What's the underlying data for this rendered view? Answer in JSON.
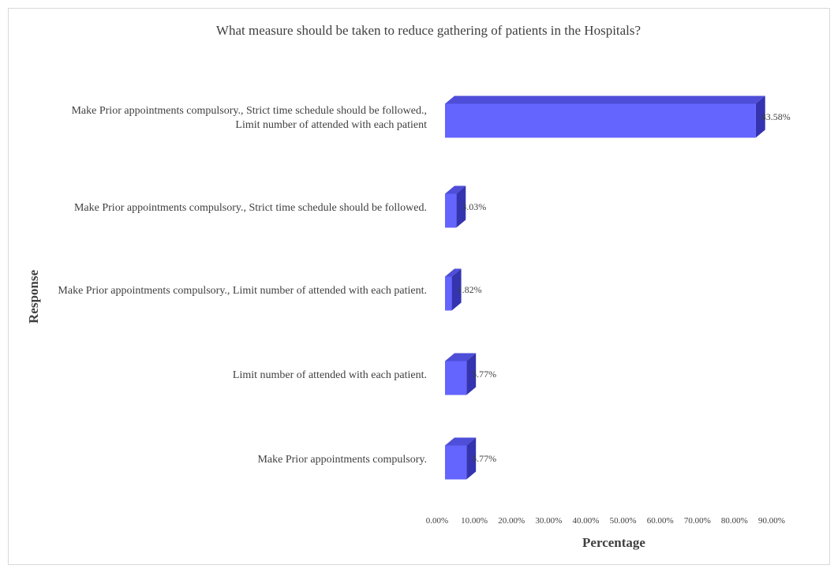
{
  "chart_data": {
    "type": "bar",
    "orientation": "horizontal",
    "style": "3d",
    "title": "What measure should be taken to reduce gathering of patients in the Hospitals?",
    "xlabel": "Percentage",
    "ylabel": "Response",
    "xlim": [
      0,
      90
    ],
    "xticks": [
      "0.00%",
      "10.00%",
      "20.00%",
      "30.00%",
      "40.00%",
      "50.00%",
      "60.00%",
      "70.00%",
      "80.00%",
      "90.00%"
    ],
    "bar_color": "#6464ff",
    "categories": [
      [
        "Make Prior appointments compulsory., Strict time schedule should be followed.,",
        "Limit number of attended with each patient"
      ],
      [
        "Make Prior appointments compulsory., Strict time schedule should be followed."
      ],
      [
        "Make Prior appointments compulsory., Limit number of attended with each patient."
      ],
      [
        "Limit number of attended with each patient."
      ],
      [
        "Make Prior appointments compulsory."
      ]
    ],
    "values": [
      83.58,
      3.03,
      1.82,
      5.77,
      5.77
    ],
    "data_labels": [
      "83.58%",
      "3.03%",
      "1.82%",
      "5.77%",
      "5.77%"
    ],
    "grid": false,
    "legend": "none"
  }
}
